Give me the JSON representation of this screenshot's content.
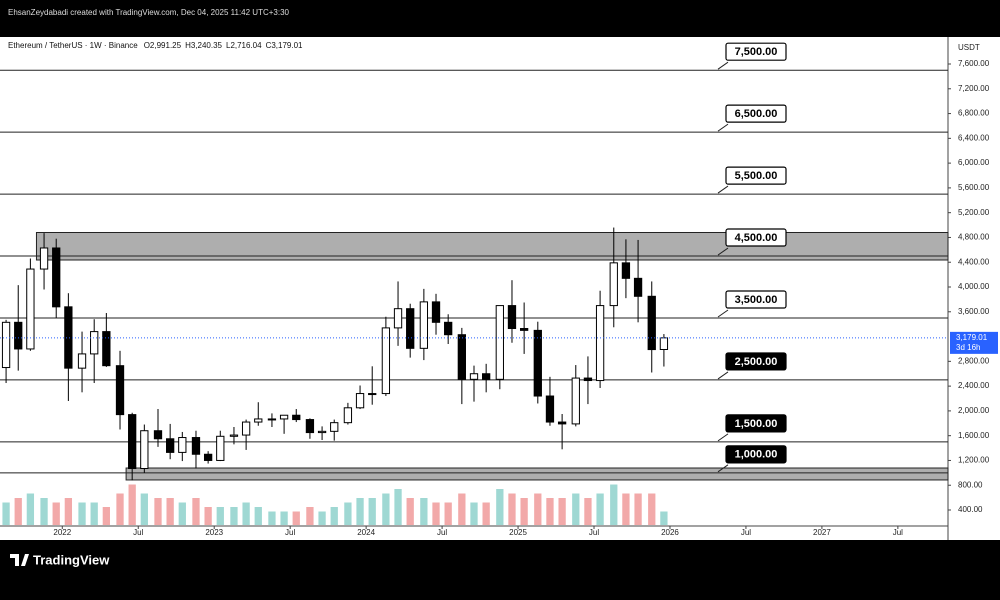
{
  "header": {
    "credit": "EhsanZeydabadi created with TradingView.com, Dec 04, 2025 11:42 UTC+3:30"
  },
  "chart_data": {
    "type": "candlestick",
    "title": "Ethereum / TetherUS · 1W · Binance",
    "ohlc": [
      {
        "key": "O",
        "value": 2991.25,
        "label": "2,991.25"
      },
      {
        "key": "H",
        "value": 3240.35,
        "label": "3,240.35"
      },
      {
        "key": "L",
        "value": 2716.04,
        "label": "2,716.04"
      },
      {
        "key": "C",
        "value": 3179.01,
        "label": "3,179.01"
      }
    ],
    "y_axis_label": "USDT",
    "x": [
      2021.63,
      2021.71,
      2021.79,
      2021.88,
      2021.96,
      2022.04,
      2022.13,
      2022.21,
      2022.29,
      2022.38,
      2022.46,
      2022.54,
      2022.63,
      2022.71,
      2022.79,
      2022.88,
      2022.96,
      2023.04,
      2023.13,
      2023.21,
      2023.29,
      2023.38,
      2023.46,
      2023.54,
      2023.63,
      2023.71,
      2023.79,
      2023.88,
      2023.96,
      2024.04,
      2024.13,
      2024.21,
      2024.29,
      2024.38,
      2024.46,
      2024.54,
      2024.63,
      2024.71,
      2024.79,
      2024.88,
      2024.96,
      2025.04,
      2025.13,
      2025.21,
      2025.29,
      2025.38,
      2025.46,
      2025.54,
      2025.63,
      2025.71,
      2025.79,
      2025.88,
      2025.96
    ],
    "open": [
      2700,
      3430,
      3000,
      4290,
      4630,
      3680,
      2690,
      2920,
      3280,
      2730,
      1940,
      1070,
      1680,
      1550,
      1330,
      1570,
      1300,
      1200,
      1590,
      1610,
      1820,
      1870,
      1870,
      1930,
      1860,
      1650,
      1670,
      1810,
      2050,
      2280,
      2280,
      3340,
      3650,
      3010,
      3760,
      3430,
      3230,
      2510,
      2600,
      2510,
      3700,
      3330,
      3300,
      2240,
      1820,
      1790,
      2530,
      2490,
      3700,
      4390,
      4140,
      3850,
      2991.25
    ],
    "high": [
      3470,
      4030,
      4460,
      4870,
      4780,
      3900,
      3280,
      3480,
      3580,
      2970,
      1970,
      1780,
      2030,
      1790,
      1660,
      1680,
      1350,
      1680,
      1740,
      1860,
      2140,
      1960,
      1930,
      2030,
      1880,
      1750,
      1860,
      2130,
      2410,
      2720,
      3520,
      4090,
      3730,
      3970,
      3890,
      3560,
      3340,
      2730,
      2760,
      3680,
      4110,
      3750,
      3440,
      2550,
      1950,
      2740,
      2880,
      3940,
      4960,
      4770,
      4760,
      4090,
      3240.35
    ],
    "low": [
      2450,
      2650,
      2970,
      3960,
      3500,
      2160,
      2300,
      2450,
      2710,
      1700,
      880,
      1000,
      1420,
      1220,
      1190,
      1070,
      1150,
      1190,
      1460,
      1370,
      1760,
      1740,
      1630,
      1820,
      1550,
      1530,
      1520,
      1780,
      2030,
      2100,
      2240,
      3050,
      2860,
      2820,
      3230,
      3080,
      2110,
      2150,
      2300,
      2350,
      3100,
      2920,
      2120,
      1760,
      1380,
      1750,
      2110,
      2370,
      3350,
      3820,
      3430,
      2620,
      2716.04
    ],
    "close": [
      3430,
      3000,
      4290,
      4630,
      3680,
      2690,
      2920,
      3280,
      2730,
      1940,
      1070,
      1680,
      1550,
      1330,
      1570,
      1300,
      1200,
      1590,
      1610,
      1820,
      1870,
      1870,
      1930,
      1860,
      1650,
      1670,
      1810,
      2050,
      2280,
      2280,
      3340,
      3650,
      3010,
      3760,
      3430,
      3230,
      2510,
      2600,
      2510,
      3700,
      3330,
      3300,
      2240,
      1820,
      1790,
      2530,
      2490,
      3700,
      4390,
      4140,
      3850,
      2990,
      3179.01
    ],
    "volume": [
      5,
      6,
      7,
      6,
      5,
      6,
      5,
      5,
      4,
      7,
      9,
      7,
      6,
      6,
      5,
      6,
      4,
      4,
      4,
      5,
      4,
      3,
      3,
      3,
      4,
      3,
      4,
      5,
      6,
      6,
      7,
      8,
      6,
      6,
      5,
      5,
      7,
      5,
      5,
      8,
      7,
      6,
      7,
      6,
      6,
      7,
      6,
      7,
      9,
      7,
      7,
      7,
      3
    ],
    "up_color": "#ffffff",
    "down_color": "#000000",
    "volume_up_color": "#9fd8d3",
    "volume_down_color": "#f2a9a9",
    "xlim": [
      2021.59,
      2027.83
    ],
    "xticks": [
      {
        "value": 2022,
        "label": "2022"
      },
      {
        "value": 2022.5,
        "label": "Jul"
      },
      {
        "value": 2023,
        "label": "2023"
      },
      {
        "value": 2023.5,
        "label": "Jul"
      },
      {
        "value": 2024,
        "label": "2024"
      },
      {
        "value": 2024.5,
        "label": "Jul"
      },
      {
        "value": 2025,
        "label": "2025"
      },
      {
        "value": 2025.5,
        "label": "Jul"
      },
      {
        "value": 2026,
        "label": "2026"
      },
      {
        "value": 2026.5,
        "label": "Jul"
      },
      {
        "value": 2027,
        "label": "2027"
      },
      {
        "value": 2027.5,
        "label": "Jul"
      }
    ],
    "ylim": [
      158,
      8036
    ],
    "yticks": [
      {
        "value": 400,
        "label": "400.00"
      },
      {
        "value": 800,
        "label": "800.00"
      },
      {
        "value": 1200,
        "label": "1,200.00"
      },
      {
        "value": 1600,
        "label": "1,600.00"
      },
      {
        "value": 2000,
        "label": "2,000.00"
      },
      {
        "value": 2400,
        "label": "2,400.00"
      },
      {
        "value": 2800,
        "label": "2,800.00"
      },
      {
        "value": 3600,
        "label": "3,600.00"
      },
      {
        "value": 4000,
        "label": "4,000.00"
      },
      {
        "value": 4400,
        "label": "4,400.00"
      },
      {
        "value": 4800,
        "label": "4,800.00"
      },
      {
        "value": 5200,
        "label": "5,200.00"
      },
      {
        "value": 5600,
        "label": "5,600.00"
      },
      {
        "value": 6000,
        "label": "6,000.00"
      },
      {
        "value": 6400,
        "label": "6,400.00"
      },
      {
        "value": 6800,
        "label": "6,800.00"
      },
      {
        "value": 7200,
        "label": "7,200.00"
      },
      {
        "value": 7600,
        "label": "7,600.00"
      }
    ],
    "levels": [
      {
        "value": 7500,
        "label": "7,500.00",
        "dark": false
      },
      {
        "value": 6500,
        "label": "6,500.00",
        "dark": false
      },
      {
        "value": 5500,
        "label": "5,500.00",
        "dark": false
      },
      {
        "value": 4500,
        "label": "4,500.00",
        "dark": false
      },
      {
        "value": 3500,
        "label": "3,500.00",
        "dark": false
      },
      {
        "value": 2500,
        "label": "2,500.00",
        "dark": true
      },
      {
        "value": 1500,
        "label": "1,500.00",
        "dark": true
      },
      {
        "value": 1000,
        "label": "1,000.00",
        "dark": true
      }
    ],
    "zones": [
      {
        "start": 2021.83,
        "from": 4436,
        "to": 4880
      },
      {
        "start": 2022.42,
        "from": 885,
        "to": 1078
      }
    ],
    "last_price": {
      "value": 3179.01,
      "label": "3,179.01"
    },
    "countdown": "3d 16h"
  },
  "footer": {
    "brand": "TradingView"
  }
}
